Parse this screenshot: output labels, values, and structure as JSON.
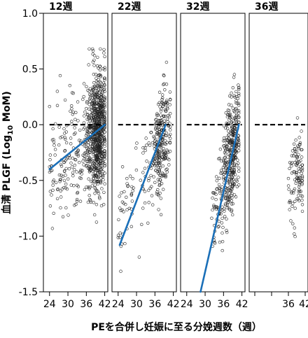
{
  "chart_data": {
    "type": "scatter",
    "ylabel": "血清 PLGF (Log10 MoM)",
    "ylabel_parts": {
      "prefix": "血清 PLGF (Log",
      "sub": "10",
      "suffix": " MoM)"
    },
    "xlabel": "PEを合併し妊娠に至る分娩週数（週）",
    "ylim": [
      -1.5,
      1.0
    ],
    "yticks": [
      "1.0",
      "0.5",
      "0.0",
      "-0.5",
      "-1.0",
      "-1.5"
    ],
    "ytick_values": [
      1.0,
      0.5,
      0.0,
      -0.5,
      -1.0,
      -1.5
    ],
    "xticks": [
      "24",
      "30",
      "36",
      "42"
    ],
    "xtick_values": [
      24,
      30,
      36,
      42
    ],
    "xlim": [
      22,
      43
    ],
    "reference_line": {
      "y": 0.0,
      "style": "dashed",
      "color": "#000000"
    },
    "trend_color": "#1a6fb8",
    "point_color": "#222222",
    "panels": [
      {
        "title": "12週",
        "xtick_labels": [
          "24",
          "30",
          "36",
          "42"
        ],
        "trend": {
          "x": [
            24,
            42
          ],
          "y": [
            -0.4,
            0.0
          ]
        },
        "dash": {
          "x": [
            24,
            42
          ]
        },
        "points": {
          "x_min": 24,
          "x_max": 42,
          "x_mode": 39.5,
          "y_center_at_24": -0.4,
          "y_center_at_42": 0.0,
          "spread": 0.28,
          "count": 900,
          "seed": 11
        }
      },
      {
        "title": "22週",
        "xtick_labels": [
          "24",
          "30",
          "36",
          "42"
        ],
        "trend": {
          "x": [
            24.5,
            39.5
          ],
          "y": [
            -1.08,
            0.0
          ]
        },
        "dash": {
          "x": [
            24,
            42
          ]
        },
        "points": {
          "x_min": 24,
          "x_max": 41,
          "x_mode": 38,
          "y_center_at_24": -0.9,
          "y_center_at_42": 0.05,
          "spread": 0.22,
          "count": 340,
          "seed": 23
        }
      },
      {
        "title": "32週",
        "xtick_labels": [
          "24",
          "30",
          "36",
          "42"
        ],
        "trend": {
          "x": [
            28.5,
            41
          ],
          "y": [
            -1.5,
            0.0
          ]
        },
        "dash": {
          "x": [
            24,
            42
          ]
        },
        "points": {
          "x_min": 32,
          "x_max": 41,
          "x_mode": 38.5,
          "y_center_at_24": -1.6,
          "y_center_at_42": 0.05,
          "spread": 0.25,
          "count": 420,
          "seed": 37
        }
      },
      {
        "title": "36週",
        "xtick_labels": [
          "",
          "",
          "36",
          "42"
        ],
        "trend": null,
        "dash": {
          "x": [
            24,
            42
          ]
        },
        "points": {
          "x_min": 36,
          "x_max": 41,
          "x_mode": 39.5,
          "y_center_at_24": -0.5,
          "y_center_at_42": -0.4,
          "spread": 0.22,
          "count": 110,
          "seed": 53
        }
      }
    ]
  }
}
